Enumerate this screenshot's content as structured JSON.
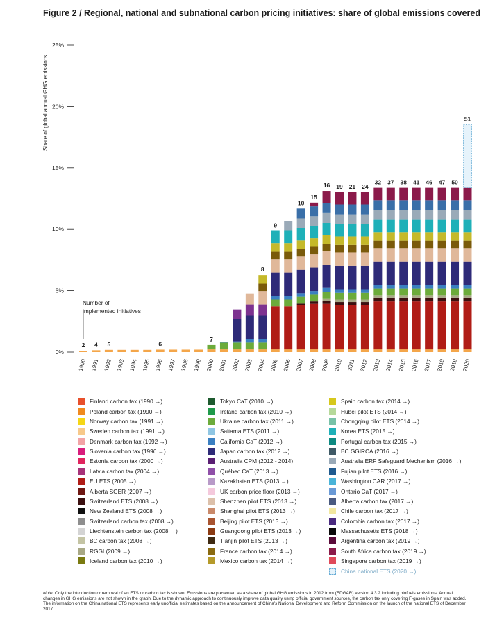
{
  "title": "Figure 2 / Regional, national and subnational carbon pricing initiatives: share of global emissions covered",
  "annotation": {
    "line1": "Number of",
    "line2": "implemented initiatives"
  },
  "chart_data": {
    "type": "bar",
    "stacked": true,
    "title": "Figure 2 / Regional, national and subnational carbon pricing initiatives: share of global emissions covered",
    "ylabel": "Share of global annual GHG emissions",
    "xlabel": "",
    "ylim": [
      0,
      25
    ],
    "yticks": [
      0,
      5,
      10,
      15,
      20,
      25
    ],
    "ytick_labels": [
      "0%",
      "5%",
      "10%",
      "15%",
      "20%",
      "25%"
    ],
    "categories": [
      "1990",
      "1991",
      "1992",
      "1993",
      "1994",
      "1995",
      "1996",
      "1997",
      "1998",
      "1999",
      "2000",
      "2001",
      "2002",
      "2003",
      "2004",
      "2005",
      "2006",
      "2007",
      "2008",
      "2009",
      "2010",
      "2011",
      "2012",
      "2013",
      "2014",
      "2015",
      "2016",
      "2017",
      "2018",
      "2019",
      "2020"
    ],
    "initiative_counts": [
      2,
      4,
      5,
      null,
      null,
      null,
      6,
      null,
      null,
      null,
      7,
      null,
      null,
      null,
      8,
      9,
      null,
      10,
      15,
      16,
      19,
      21,
      24,
      32,
      37,
      38,
      41,
      46,
      47,
      50,
      51
    ],
    "series": [
      {
        "name": "Other initiatives (Finland, Poland, Norway, Sweden, Denmark, Slovenia, Estonia, Latvia carbon taxes)",
        "color": "#f4a64a",
        "values": [
          0.1,
          0.15,
          0.18,
          0.18,
          0.18,
          0.18,
          0.2,
          0.2,
          0.2,
          0.2,
          0.22,
          0.22,
          0.22,
          0.22,
          0.22,
          0.22,
          0.22,
          0.22,
          0.22,
          0.22,
          0.22,
          0.22,
          0.22,
          0.22,
          0.22,
          0.22,
          0.22,
          0.22,
          0.22,
          0.22,
          0.22
        ]
      },
      {
        "name": "EU ETS",
        "color": "#b01c16",
        "values": [
          0,
          0,
          0,
          0,
          0,
          0,
          0,
          0,
          0,
          0,
          0,
          0,
          0,
          0,
          0,
          3.5,
          3.5,
          3.6,
          3.7,
          3.7,
          3.6,
          3.6,
          3.6,
          3.9,
          3.9,
          3.9,
          3.9,
          3.9,
          3.9,
          3.9,
          3.9
        ]
      },
      {
        "name": "Alberta, Switzerland, NZ, Liechtenstein, BC, RGGI, Iceland",
        "color": "#3b1010",
        "values": [
          0,
          0,
          0,
          0,
          0,
          0,
          0,
          0,
          0,
          0,
          0,
          0,
          0,
          0,
          0,
          0,
          0,
          0.12,
          0.2,
          0.25,
          0.25,
          0.25,
          0.25,
          0.3,
          0.3,
          0.3,
          0.3,
          0.3,
          0.3,
          0.3,
          0.3
        ]
      },
      {
        "name": "RGGI / BC carbon tax",
        "color": "#a8a885",
        "values": [
          0,
          0,
          0,
          0,
          0,
          0,
          0,
          0,
          0,
          0,
          0,
          0,
          0,
          0,
          0,
          0,
          0,
          0,
          0,
          0.2,
          0.2,
          0.2,
          0.2,
          0.2,
          0.2,
          0.2,
          0.2,
          0.2,
          0.2,
          0.2,
          0.2
        ]
      },
      {
        "name": "Ireland, Ukraine carbon taxes",
        "color": "#6cab3b",
        "values": [
          0,
          0,
          0,
          0,
          0,
          0,
          0,
          0,
          0,
          0,
          0.35,
          0.55,
          0.55,
          0.55,
          0.55,
          0.55,
          0.55,
          0.55,
          0.55,
          0.55,
          0.55,
          0.55,
          0.55,
          0.55,
          0.55,
          0.55,
          0.55,
          0.55,
          0.55,
          0.55,
          0.55
        ]
      },
      {
        "name": "California CaT / Saitama / Tokyo",
        "color": "#3a7fc1",
        "values": [
          0,
          0,
          0,
          0,
          0,
          0,
          0,
          0,
          0,
          0,
          0,
          0.05,
          0.1,
          0.3,
          0.3,
          0.3,
          0.3,
          0.3,
          0.3,
          0.3,
          0.3,
          0.3,
          0.3,
          0.3,
          0.3,
          0.3,
          0.3,
          0.3,
          0.3,
          0.3,
          0.3
        ]
      },
      {
        "name": "Japan carbon tax (2012)",
        "color": "#2e2a78",
        "values": [
          0,
          0,
          0,
          0,
          0,
          0,
          0,
          0,
          0,
          0,
          0,
          0,
          1.8,
          1.9,
          1.9,
          1.9,
          1.9,
          1.9,
          1.9,
          1.9,
          1.9,
          1.9,
          1.9,
          1.9,
          1.9,
          1.9,
          1.9,
          1.9,
          1.9,
          1.9,
          1.9
        ]
      },
      {
        "name": "Australia CPM (2012-2014)",
        "color": "#7d3290",
        "values": [
          0,
          0,
          0,
          0,
          0,
          0,
          0,
          0,
          0,
          0,
          0,
          0,
          0.8,
          0.9,
          0.9,
          0,
          0,
          0,
          0,
          0,
          0,
          0,
          0,
          0,
          0,
          0,
          0,
          0,
          0,
          0,
          0
        ]
      },
      {
        "name": "China pilot ETSs, Québec, Kazakhstan, UK price floor",
        "color": "#e0b89a",
        "values": [
          0,
          0,
          0,
          0,
          0,
          0,
          0,
          0,
          0,
          0,
          0,
          0,
          0,
          0.9,
          1.1,
          1.1,
          1.1,
          1.1,
          1.1,
          1.1,
          1.1,
          1.1,
          1.1,
          1.1,
          1.1,
          1.1,
          1.1,
          1.1,
          1.1,
          1.1,
          1.1
        ]
      },
      {
        "name": "France, Mexico carbon taxes (2014)",
        "color": "#7a5a0a",
        "values": [
          0,
          0,
          0,
          0,
          0,
          0,
          0,
          0,
          0,
          0,
          0,
          0,
          0,
          0,
          0.6,
          0.6,
          0.6,
          0.6,
          0.6,
          0.6,
          0.6,
          0.6,
          0.6,
          0.6,
          0.6,
          0.6,
          0.6,
          0.6,
          0.6,
          0.6,
          0.6
        ]
      },
      {
        "name": "Spain, Hubei, Chongqing (2014)",
        "color": "#c5b92a",
        "values": [
          0,
          0,
          0,
          0,
          0,
          0,
          0,
          0,
          0,
          0,
          0,
          0,
          0,
          0,
          0.7,
          0.7,
          0.7,
          0.7,
          0.7,
          0.7,
          0.7,
          0.7,
          0.7,
          0.7,
          0.7,
          0.7,
          0.7,
          0.7,
          0.7,
          0.7,
          0.7
        ]
      },
      {
        "name": "Korea ETS (2015)",
        "color": "#1fb0b8",
        "values": [
          0,
          0,
          0,
          0,
          0,
          0,
          0,
          0,
          0,
          0,
          0,
          0,
          0,
          0,
          0,
          1.0,
          1.0,
          1.0,
          1.0,
          1.0,
          1.0,
          1.0,
          1.0,
          1.0,
          1.0,
          1.0,
          1.0,
          1.0,
          1.0,
          1.0,
          1.0
        ]
      },
      {
        "name": "Australia ERF, Fujian, BC GGIRCA, Portugal (2015-2016)",
        "color": "#9aaab8",
        "values": [
          0,
          0,
          0,
          0,
          0,
          0,
          0,
          0,
          0,
          0,
          0,
          0,
          0,
          0,
          0,
          0,
          0.8,
          0.8,
          0.8,
          0.8,
          0.8,
          0.8,
          0.8,
          0.8,
          0.8,
          0.8,
          0.8,
          0.8,
          0.8,
          0.8,
          0.8
        ]
      },
      {
        "name": "Canada, Chile, Colombia (2017)",
        "color": "#3a6fa8",
        "values": [
          0,
          0,
          0,
          0,
          0,
          0,
          0,
          0,
          0,
          0,
          0,
          0,
          0,
          0,
          0,
          0,
          0,
          0.8,
          0.8,
          0.8,
          0.8,
          0.8,
          0.8,
          0.8,
          0.8,
          0.8,
          0.8,
          0.8,
          0.8,
          0.8,
          0.8
        ]
      },
      {
        "name": "Massachusetts, Argentina, South Africa, Singapore (2018-2019)",
        "color": "#8b1a4a",
        "values": [
          0,
          0,
          0,
          0,
          0,
          0,
          0,
          0,
          0,
          0,
          0,
          0,
          0,
          0,
          0,
          0,
          0,
          0,
          0.3,
          1.0,
          1.0,
          1.0,
          1.0,
          1.0,
          1.0,
          1.0,
          1.0,
          1.0,
          1.0,
          1.0,
          1.0
        ]
      },
      {
        "name": "China national ETS (2020)",
        "color": "#e6f3fb",
        "dashed": true,
        "values": [
          0,
          0,
          0,
          0,
          0,
          0,
          0,
          0,
          0,
          0,
          0,
          0,
          0,
          0,
          0,
          0,
          0,
          0,
          0,
          0,
          0,
          0,
          0,
          0,
          0,
          0,
          0,
          0,
          0,
          0,
          5.15
        ]
      }
    ]
  },
  "legend": {
    "columns": [
      [
        {
          "label": "Finland carbon tax (1990 →)",
          "color": "#e8502b"
        },
        {
          "label": "Poland carbon tax (1990 →)",
          "color": "#f08a1f"
        },
        {
          "label": "Norway carbon tax (1991 →)",
          "color": "#f5d616"
        },
        {
          "label": "Sweden carbon tax (1991 →)",
          "color": "#f7c98a"
        },
        {
          "label": "Denmark carbon tax (1992 →)",
          "color": "#f2a3a6"
        },
        {
          "label": "Slovenia carbon tax (1996 →)",
          "color": "#d81c7c"
        },
        {
          "label": "Estonia carbon tax (2000 →)",
          "color": "#e0245e"
        },
        {
          "label": "Latvia carbon tax (2004 →)",
          "color": "#a73279"
        },
        {
          "label": "EU ETS (2005 →)",
          "color": "#b01c16"
        },
        {
          "label": "Alberta SGER (2007 →)",
          "color": "#6e1712"
        },
        {
          "label": "Switzerland ETS (2008 →)",
          "color": "#3b1010"
        },
        {
          "label": "New Zealand ETS (2008 →)",
          "color": "#111111"
        },
        {
          "label": "Switzerland carbon tax (2008 →)",
          "color": "#8e8e8e"
        },
        {
          "label": "Liechtenstein carbon tax (2008 →)",
          "color": "#d4d4d4"
        },
        {
          "label": "BC carbon tax (2008 →)",
          "color": "#c4c4a4"
        },
        {
          "label": "RGGI (2009 →)",
          "color": "#a8a885"
        },
        {
          "label": "Iceland carbon tax (2010 →)",
          "color": "#7a7a10"
        }
      ],
      [
        {
          "label": "Tokyo CaT (2010 →)",
          "color": "#1d5a2e"
        },
        {
          "label": "Ireland carbon tax (2010 →)",
          "color": "#1f9a4a"
        },
        {
          "label": "Ukraine carbon tax (2011 →)",
          "color": "#6cab3b"
        },
        {
          "label": "Saitama ETS (2011 →)",
          "color": "#8fc6e3"
        },
        {
          "label": "California CaT (2012 →)",
          "color": "#3a7fc1"
        },
        {
          "label": "Japan carbon tax (2012 →)",
          "color": "#2e2a78"
        },
        {
          "label": "Australia CPM (2012 - 2014)",
          "color": "#5a1f73"
        },
        {
          "label": "Québec CaT (2013 →)",
          "color": "#8f4fa8"
        },
        {
          "label": "Kazakhstan ETS (2013 →)",
          "color": "#b89ac8"
        },
        {
          "label": "UK carbon price floor (2013 →)",
          "color": "#f4c9dc"
        },
        {
          "label": "Shenzhen pilot ETS (2013 →)",
          "color": "#dcc0aa"
        },
        {
          "label": "Shanghai pilot ETS (2013 →)",
          "color": "#c9896a"
        },
        {
          "label": "Beijing pilot ETS (2013 →)",
          "color": "#a85430"
        },
        {
          "label": "Guangdong pilot ETS (2013 →)",
          "color": "#8a3a12"
        },
        {
          "label": "Tianjin pilot ETS (2013 →)",
          "color": "#3f2a12"
        },
        {
          "label": "France carbon tax (2014 →)",
          "color": "#8a6a10"
        },
        {
          "label": "Mexico carbon tax (2014 →)",
          "color": "#b59a2a"
        }
      ],
      [
        {
          "label": "Spain carbon tax (2014 →)",
          "color": "#d6c81c"
        },
        {
          "label": "Hubei pilot ETS (2014 →)",
          "color": "#b6d99a"
        },
        {
          "label": "Chongqing pilot ETS (2014 →)",
          "color": "#78c2a8"
        },
        {
          "label": "Korea ETS (2015 →)",
          "color": "#1fb0b8"
        },
        {
          "label": "Portugal carbon tax (2015 →)",
          "color": "#0e8a82"
        },
        {
          "label": "BC GGIRCA (2016 →)",
          "color": "#3f5a66"
        },
        {
          "label": "Australia ERF Safeguard Mechanism (2016 →)",
          "color": "#9aaab8"
        },
        {
          "label": "Fujian pilot ETS (2016 →)",
          "color": "#1f5a8f"
        },
        {
          "label": "Washington CAR (2017 →)",
          "color": "#4ab4d8"
        },
        {
          "label": "Ontario CaT (2017 →)",
          "color": "#6a9ad6"
        },
        {
          "label": "Alberta carbon tax (2017 →)",
          "color": "#4a5a80"
        },
        {
          "label": "Chile carbon tax (2017 →)",
          "color": "#f2e8a0"
        },
        {
          "label": "Colombia carbon tax (2017 →)",
          "color": "#4a2a80"
        },
        {
          "label": "Massachusetts ETS (2018 →)",
          "color": "#0a0a0a"
        },
        {
          "label": "Argentina carbon tax (2019 →)",
          "color": "#5a0a3a"
        },
        {
          "label": "South Africa carbon tax (2019 →)",
          "color": "#8b1a4a"
        },
        {
          "label": "Singapore carbon tax (2019 →)",
          "color": "#e04a5a"
        },
        {
          "label": "China national ETS (2020 →)",
          "color": "#e6f3fb",
          "dashed": true
        }
      ]
    ]
  },
  "note": {
    "label": "Note",
    "text": ": Only the introduction or removal of an ETS or carbon tax is shown. Emissions are presented as a share of global GHG emissions in 2012 from (EDGAR) version 4.3.2 including biofuels emissions. Annual changes in GHG emissions are not shown in the graph. Due to the dynamic approach to continuously improve data quality using official government sources, the carbon tax only covering F-gases in Spain was added. The information on the China national ETS represents early unofficial estimates based on the announcement of China’s National Development and Reform Commission on the launch of the national ETS of December 2017."
  }
}
